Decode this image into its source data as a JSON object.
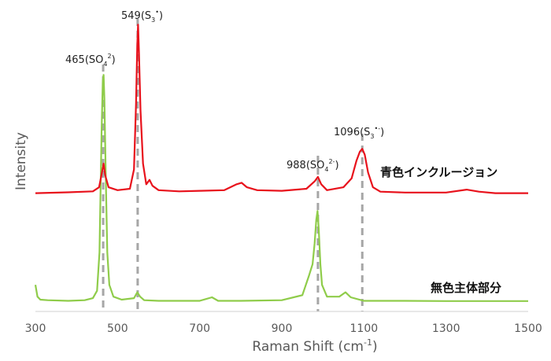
{
  "chart_data": {
    "type": "line",
    "title": "",
    "xlabel_main": "Raman Shift (cm",
    "xlabel_sup": "-1",
    "xlabel_end": ")",
    "ylabel": "Intensity",
    "xlim": [
      300,
      1500
    ],
    "xticks": [
      300,
      500,
      700,
      900,
      1100,
      1300,
      1500
    ],
    "ylim": [
      0,
      100
    ],
    "grid": false,
    "colors": {
      "red": "#e8121c",
      "green": "#8fcc4a",
      "marker": "#a6a6a6"
    },
    "series": [
      {
        "name": "青色インクルージョン",
        "color": "#e8121c",
        "x": [
          300,
          380,
          440,
          455,
          462,
          466,
          470,
          478,
          500,
          530,
          540,
          545,
          548,
          550,
          552,
          556,
          562,
          570,
          578,
          585,
          600,
          650,
          700,
          760,
          790,
          802,
          815,
          840,
          900,
          960,
          980,
          988,
          996,
          1010,
          1050,
          1070,
          1082,
          1090,
          1096,
          1102,
          1110,
          1122,
          1140,
          1200,
          1300,
          1350,
          1380,
          1420,
          1500
        ],
        "y": [
          40,
          40.3,
          40.6,
          42,
          47,
          50,
          46,
          42,
          41,
          41.5,
          48,
          70,
          90,
          97,
          88,
          68,
          50,
          43,
          44.5,
          42.5,
          41,
          40.6,
          40.8,
          41,
          43,
          43.5,
          42,
          41,
          40.8,
          41.5,
          44,
          45.5,
          43,
          41,
          42,
          45,
          51,
          54,
          55,
          53,
          47,
          42,
          40.5,
          40.2,
          40.2,
          41.2,
          40.5,
          40,
          40
        ]
      },
      {
        "name": "無色主体部分",
        "color": "#8fcc4a",
        "x": [
          300,
          305,
          312,
          330,
          380,
          420,
          440,
          450,
          456,
          461,
          464,
          466,
          468,
          471,
          475,
          480,
          490,
          510,
          540,
          548,
          555,
          565,
          600,
          700,
          730,
          745,
          800,
          900,
          950,
          966,
          975,
          980,
          984,
          987,
          990,
          994,
          998,
          1010,
          1040,
          1055,
          1068,
          1100,
          1200,
          1300,
          1400,
          1500
        ],
        "y": [
          9,
          5,
          4,
          3.8,
          3.6,
          3.8,
          4.5,
          7,
          20,
          60,
          78,
          80,
          72,
          48,
          20,
          9,
          5,
          4,
          4.5,
          6.5,
          5,
          3.8,
          3.6,
          3.6,
          4.8,
          3.6,
          3.6,
          3.8,
          5.5,
          12,
          16,
          23,
          31,
          34,
          28,
          16,
          9,
          5,
          5,
          6.5,
          4.8,
          3.6,
          3.6,
          3.5,
          3.5,
          3.5
        ]
      }
    ],
    "markers": [
      {
        "x": 465,
        "label_main": "465(SO",
        "sub": "4",
        "sup": "2",
        "label_end": ")"
      },
      {
        "x": 549,
        "label_main": "549(S",
        "sub": "3",
        "sup": "•",
        "label_end": ")"
      },
      {
        "x": 988,
        "label_main": "988(SO",
        "sub": "4",
        "sup": "2-",
        "label_end": ")"
      },
      {
        "x": 1096,
        "label_main": "1096(S",
        "sub": "3",
        "sup": "•-",
        "label_end": ")"
      }
    ]
  }
}
